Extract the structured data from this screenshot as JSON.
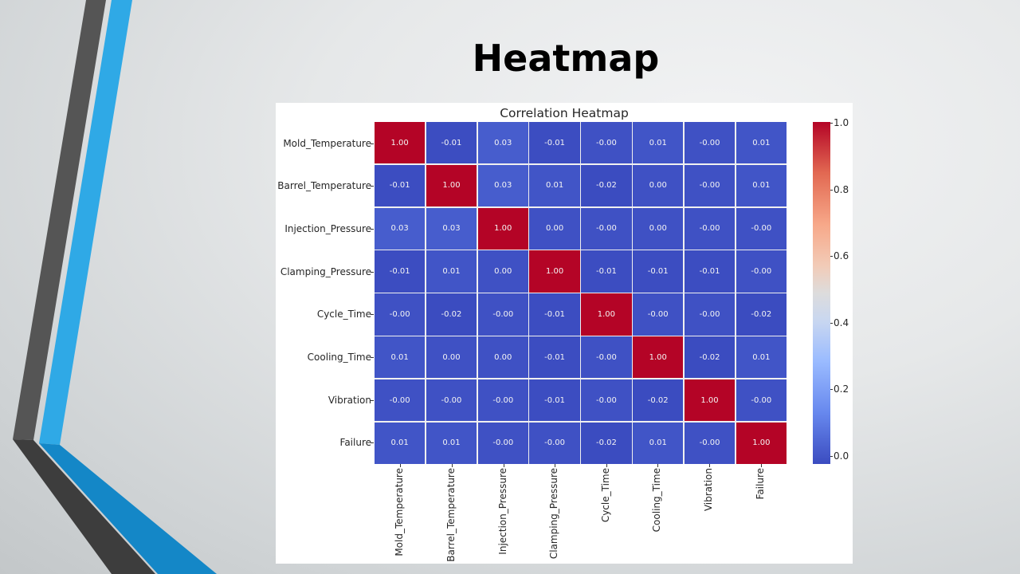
{
  "slide": {
    "title": "Heatmap"
  },
  "chart": {
    "title": "Correlation Heatmap",
    "labels": [
      "Mold_Temperature",
      "Barrel_Temperature",
      "Injection_Pressure",
      "Clamping_Pressure",
      "Cycle_Time",
      "Cooling_Time",
      "Vibration",
      "Failure"
    ],
    "colorbar_ticks": [
      "0.0",
      "0.2",
      "0.4",
      "0.6",
      "0.8",
      "1.0"
    ],
    "colors": {
      "high": "#b40426",
      "low": "#3b4cc0",
      "cell_text": "#f4f4f4"
    }
  },
  "chart_data": {
    "type": "heatmap",
    "title": "Correlation Heatmap",
    "x_labels": [
      "Mold_Temperature",
      "Barrel_Temperature",
      "Injection_Pressure",
      "Clamping_Pressure",
      "Cycle_Time",
      "Cooling_Time",
      "Vibration",
      "Failure"
    ],
    "y_labels": [
      "Mold_Temperature",
      "Barrel_Temperature",
      "Injection_Pressure",
      "Clamping_Pressure",
      "Cycle_Time",
      "Cooling_Time",
      "Vibration",
      "Failure"
    ],
    "values": [
      [
        "1.00",
        "-0.01",
        "0.03",
        "-0.01",
        "-0.00",
        "0.01",
        "-0.00",
        "0.01"
      ],
      [
        "-0.01",
        "1.00",
        "0.03",
        "0.01",
        "-0.02",
        "0.00",
        "-0.00",
        "0.01"
      ],
      [
        "0.03",
        "0.03",
        "1.00",
        "0.00",
        "-0.00",
        "0.00",
        "-0.00",
        "-0.00"
      ],
      [
        "-0.01",
        "0.01",
        "0.00",
        "1.00",
        "-0.01",
        "-0.01",
        "-0.01",
        "-0.00"
      ],
      [
        "-0.00",
        "-0.02",
        "-0.00",
        "-0.01",
        "1.00",
        "-0.00",
        "-0.00",
        "-0.02"
      ],
      [
        "0.01",
        "0.00",
        "0.00",
        "-0.01",
        "-0.00",
        "1.00",
        "-0.02",
        "0.01"
      ],
      [
        "-0.00",
        "-0.00",
        "-0.00",
        "-0.01",
        "-0.00",
        "-0.02",
        "1.00",
        "-0.00"
      ],
      [
        "0.01",
        "0.01",
        "-0.00",
        "-0.00",
        "-0.02",
        "0.01",
        "-0.00",
        "1.00"
      ]
    ],
    "colormap": "coolwarm",
    "vmin": 0.0,
    "vmax": 1.0,
    "colorbar_ticks": [
      0.0,
      0.2,
      0.4,
      0.6,
      0.8,
      1.0
    ],
    "annotated": true,
    "legend_position": "right (colorbar)"
  }
}
